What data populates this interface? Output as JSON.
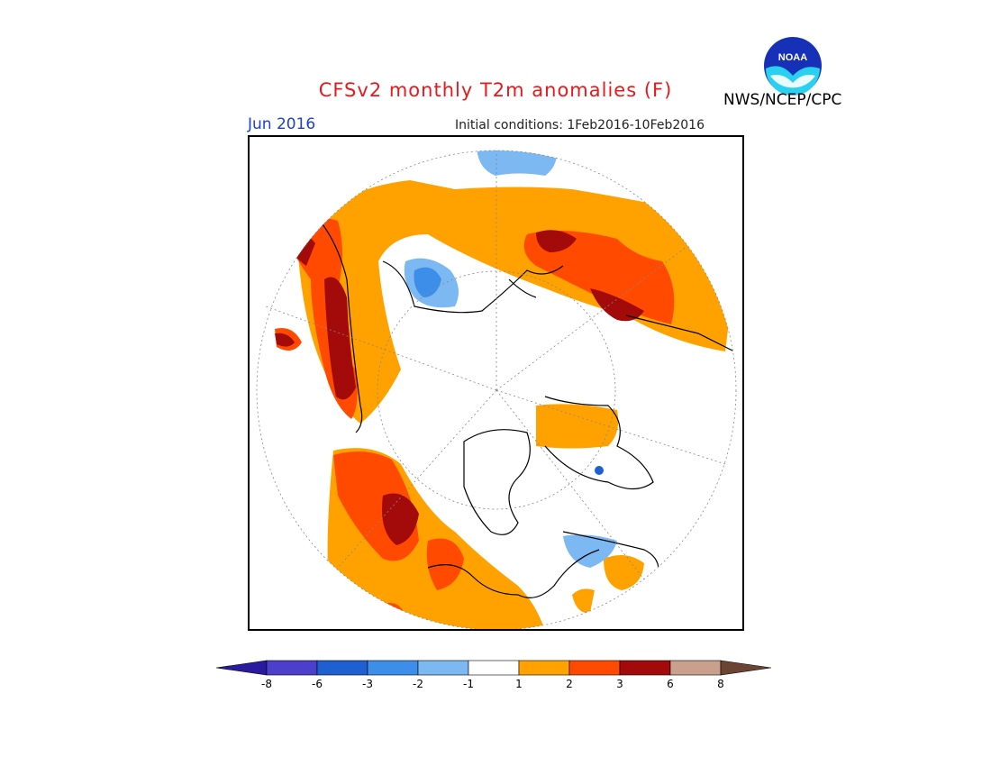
{
  "title": "CFSv2 monthly T2m anomalies (F)",
  "agency": "NWS/NCEP/CPC",
  "logo_text": "NOAA",
  "valid_month": "Jun 2016",
  "initial_conditions": "Initial conditions: 1Feb2016-10Feb2016",
  "map": {
    "projection": "north-polar-stereographic",
    "features": [
      "coastlines",
      "latitude-circles",
      "longitude-lines"
    ]
  },
  "legend": {
    "ticks": [
      "-8",
      "-6",
      "-3",
      "-2",
      "-1",
      "1",
      "2",
      "3",
      "6",
      "8"
    ],
    "colors": [
      "#2a1a9e",
      "#4b3fcb",
      "#1e5fd2",
      "#3d8ee8",
      "#7cb8f2",
      "#ffffff",
      "#ffa200",
      "#ff4a00",
      "#a30a0a",
      "#c9a08c",
      "#6b4433"
    ]
  }
}
